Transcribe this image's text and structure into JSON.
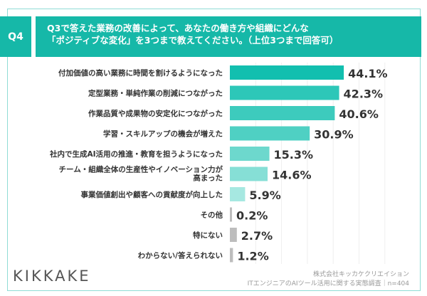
{
  "header": {
    "question_no": "Q4",
    "title_line1": "Q3で答えた業務の改善によって、あなたの働き方や組織にどんな",
    "title_line2": "「ポジティブな変化」を3つまで教えてください。（上位3つまで回答可）"
  },
  "chart_data": {
    "type": "bar",
    "orientation": "horizontal",
    "categories": [
      "付加価値の高い業務に時間を割けるようになった",
      "定型業務・単純作業の削減につながった",
      "作業品質や成果物の安定化につながった",
      "学習・スキルアップの機会が増えた",
      "社内で生成AI活用の推進・教育を担うようになった",
      "チーム・組織全体の生産性やイノベーション力が|高まった",
      "事業価値創出や顧客への貢献度が向上した",
      "その他",
      "特にない",
      "わからない/答えられない"
    ],
    "values": [
      44.1,
      42.3,
      40.6,
      30.9,
      15.3,
      14.6,
      5.9,
      0.2,
      2.7,
      1.2
    ],
    "value_labels": [
      "44.1%",
      "42.3%",
      "40.6%",
      "30.9%",
      "15.3%",
      "14.6%",
      "5.9%",
      "0.2%",
      "2.7%",
      "1.2%"
    ],
    "colors": [
      "#12bfaf",
      "#2dc7b8",
      "#3dcbbd",
      "#4fd0c3",
      "#6dd8cd",
      "#86dfd6",
      "#a6e8e1",
      "#bdbdbd",
      "#bdbdbd",
      "#bdbdbd"
    ],
    "xlim": [
      0,
      70
    ],
    "grid": true,
    "unit": "%"
  },
  "footer": {
    "logo": "KIKKAKE",
    "source_line1": "株式会社キッカケクリエイション",
    "source_line2": "ITエンジニアのAIツール活用に関する実態調査｜n=404"
  }
}
